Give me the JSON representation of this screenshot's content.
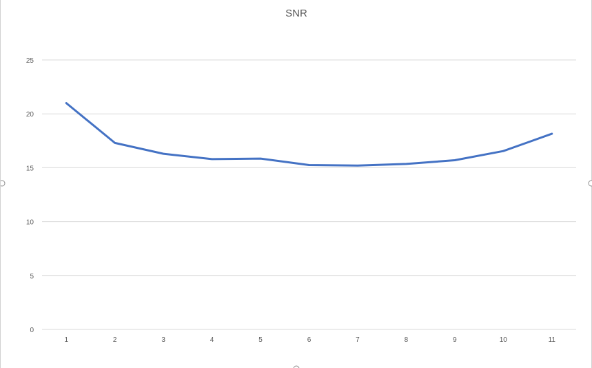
{
  "chart_data": {
    "type": "line",
    "title": "SNR",
    "x": [
      1,
      2,
      3,
      4,
      5,
      6,
      7,
      8,
      9,
      10,
      11
    ],
    "categories": [
      "1",
      "2",
      "3",
      "4",
      "5",
      "6",
      "7",
      "8",
      "9",
      "10",
      "11"
    ],
    "series": [
      {
        "values": [
          21.0,
          17.3,
          16.3,
          15.8,
          15.85,
          15.25,
          15.2,
          15.35,
          15.7,
          16.55,
          18.15
        ],
        "color": "#4472c4"
      }
    ],
    "xlabel": "",
    "ylabel": "",
    "ylim": [
      0,
      25
    ],
    "yticks": [
      0,
      5,
      10,
      15,
      20,
      25
    ],
    "grid": true,
    "legend": "none"
  }
}
